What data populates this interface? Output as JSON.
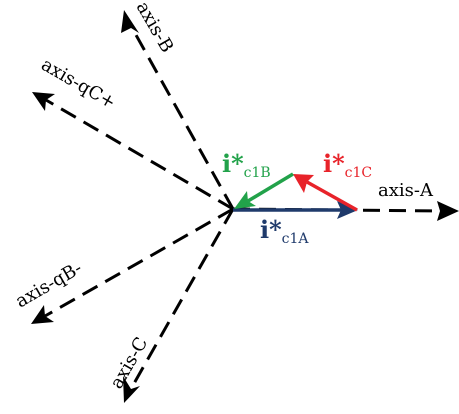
{
  "diagram": {
    "axes": {
      "a": "axis-A",
      "b": "axis-B",
      "c": "axis-C",
      "qc": "axis-qC+",
      "qb": "axis-qB-"
    },
    "vectors": {
      "a": {
        "main": "i*",
        "sub": "c1A",
        "color": "#1f3a6b"
      },
      "b": {
        "main": "i*",
        "sub": "c1B",
        "color": "#22a24a"
      },
      "c": {
        "main": "i*",
        "sub": "c1C",
        "color": "#e8232a"
      }
    }
  }
}
